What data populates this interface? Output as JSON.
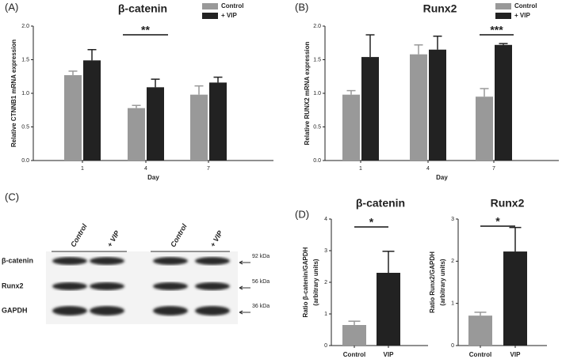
{
  "chart_data": [
    {
      "type": "bar",
      "panel_label": "(A)",
      "title": "β-catenin",
      "ylabel": [
        "Relative CTNNB1 mRNA expression"
      ],
      "xlabel": "Day",
      "categories": [
        "1",
        "4",
        "7"
      ],
      "series": [
        {
          "name": "Control",
          "color": "#999999",
          "values": [
            1.27,
            0.78,
            0.98
          ],
          "errors": [
            0.06,
            0.04,
            0.13
          ]
        },
        {
          "name": "+ VIP",
          "color": "#222222",
          "values": [
            1.49,
            1.09,
            1.16
          ],
          "errors": [
            0.16,
            0.12,
            0.08
          ]
        }
      ],
      "ylim": [
        0,
        2
      ],
      "yticks": [
        {
          "value": 0,
          "label": "0.0"
        },
        0.5,
        {
          "value": 1,
          "label": "1.0"
        },
        1.5,
        {
          "value": 2,
          "label": "2.0"
        }
      ],
      "significance": "**",
      "legend": "top-right"
    },
    {
      "type": "bar",
      "panel_label": "(B)",
      "title": "Runx2",
      "ylabel": [
        "Relative RUNX2 mRNA expression"
      ],
      "xlabel": "Day",
      "categories": [
        "1",
        "4",
        "7"
      ],
      "series": [
        {
          "name": "Control",
          "color": "#999999",
          "values": [
            0.98,
            1.58,
            0.95
          ],
          "errors": [
            0.06,
            0.14,
            0.12
          ]
        },
        {
          "name": "+ VIP",
          "color": "#222222",
          "values": [
            1.54,
            1.65,
            1.72
          ],
          "errors": [
            0.33,
            0.2,
            0.02
          ]
        }
      ],
      "ylim": [
        0,
        2
      ],
      "yticks": [
        {
          "value": 0,
          "label": "0.0"
        },
        0.5,
        {
          "value": 1,
          "label": "1.0"
        },
        1.5,
        {
          "value": 2,
          "label": "2.0"
        }
      ],
      "significance": "***",
      "legend": "top-right"
    },
    {
      "type": "bar",
      "panel_label": "(D)",
      "title": "β-catenin",
      "ylabel": [
        "Ratio β-catenin/GAPDH",
        "(arbitrary units)"
      ],
      "categories": [
        "Control",
        "VIP"
      ],
      "series": [
        {
          "colors": [
            "#999999",
            "#222222"
          ],
          "values": [
            0.65,
            2.3
          ],
          "errors": [
            0.12,
            0.68
          ]
        }
      ],
      "ylim": [
        0,
        4
      ],
      "yticks": [
        0,
        1,
        2,
        3,
        4
      ],
      "significance": "*"
    },
    {
      "type": "bar",
      "title": "Runx2",
      "ylabel": [
        "Ratio Runx2/GAPDH",
        "(arbitrary units)"
      ],
      "categories": [
        "Control",
        "VIP"
      ],
      "series": [
        {
          "colors": [
            "#999999",
            "#222222"
          ],
          "values": [
            0.71,
            2.23
          ],
          "errors": [
            0.08,
            0.57
          ]
        }
      ],
      "ylim": [
        0,
        3
      ],
      "yticks": [
        0,
        1,
        2,
        3
      ],
      "significance": "*"
    }
  ],
  "blot": {
    "panel_label": "(C)",
    "lanes": [
      "Control",
      "+ VIP",
      "Control",
      "+ VIP"
    ],
    "rows": [
      {
        "name": "β-catenin",
        "size": "92 kDa"
      },
      {
        "name": "Runx2",
        "size": "56 kDa"
      },
      {
        "name": "GAPDH",
        "size": "36 kDa"
      }
    ]
  }
}
